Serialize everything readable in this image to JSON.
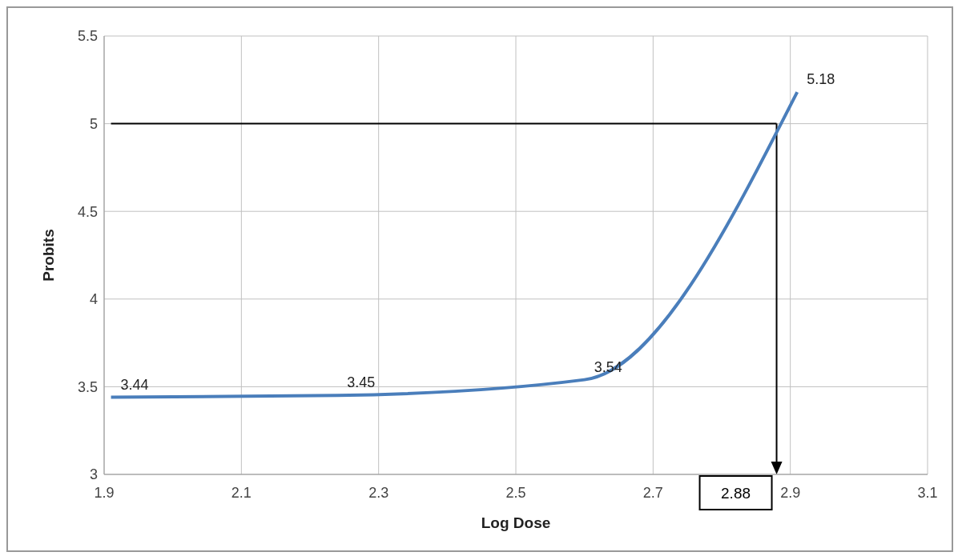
{
  "chart_data": {
    "type": "line",
    "xlabel": "Log Dose",
    "ylabel": "Probits",
    "x": [
      1.91,
      2.24,
      2.6,
      2.91
    ],
    "series": [
      {
        "color": "#4a7ebb",
        "values": [
          3.44,
          3.45,
          3.54,
          5.18
        ]
      }
    ],
    "xlim": [
      1.9,
      3.1
    ],
    "xticks": [
      1.9,
      2.1,
      2.3,
      2.5,
      2.7,
      2.9,
      3.1
    ],
    "ylim": [
      3,
      5.5
    ],
    "yticks": [
      3,
      3.5,
      4,
      4.5,
      5,
      5.5
    ],
    "grid": true,
    "marker": "none",
    "line_style": "solid",
    "data_labels": true,
    "ref_lines": [
      {
        "axis": "y",
        "value": 5,
        "color": "#000000"
      },
      {
        "axis": "x",
        "value": 2.88,
        "label": "2.88",
        "color": "#000000"
      }
    ]
  }
}
